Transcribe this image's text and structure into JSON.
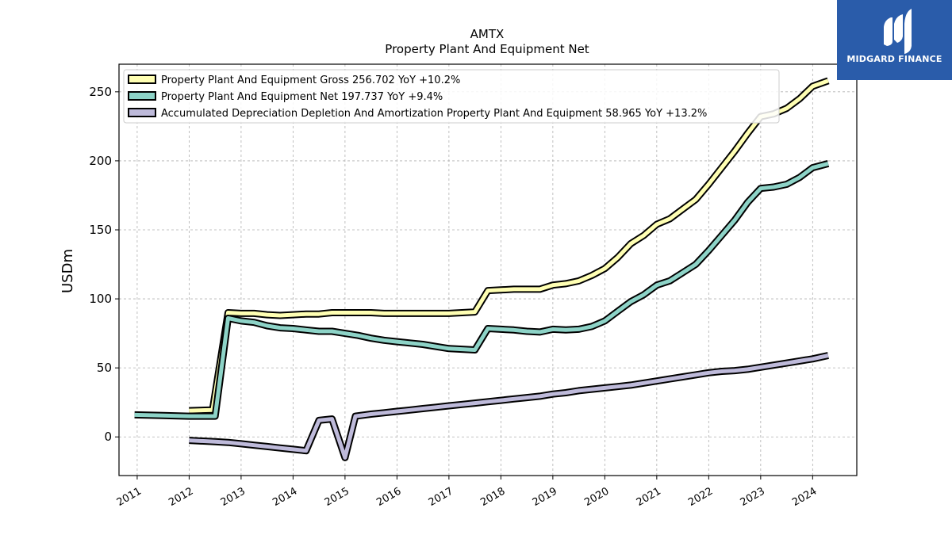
{
  "chart_data": {
    "type": "line",
    "title": "AMTX",
    "subtitle": "Property Plant And Equipment Net",
    "ylabel": "USDm",
    "xlabel": "",
    "xlim": [
      2010.65,
      2024.85
    ],
    "ylim": [
      -28,
      270
    ],
    "y_ticks": [
      0,
      50,
      100,
      150,
      200,
      250
    ],
    "x_ticks": [
      2011,
      2012,
      2013,
      2014,
      2015,
      2016,
      2017,
      2018,
      2019,
      2020,
      2021,
      2022,
      2023,
      2024
    ],
    "x_tick_labels": [
      "2011",
      "2012",
      "2013",
      "2014",
      "2015",
      "2016",
      "2017",
      "2018",
      "2019",
      "2020",
      "2021",
      "2022",
      "2023",
      "2024"
    ],
    "grid": true,
    "legend_position": "top-left",
    "series": [
      {
        "name": "Property Plant And Equipment Gross",
        "legend_label": "Property Plant And Equipment Gross  256.702 YoY +10.2%",
        "color": "#ffffb3",
        "points": [
          [
            2012.0,
            19
          ],
          [
            2012.45,
            19.5
          ],
          [
            2012.75,
            90
          ],
          [
            2013.0,
            89.5
          ],
          [
            2013.25,
            89.5
          ],
          [
            2013.5,
            88.5
          ],
          [
            2013.75,
            88
          ],
          [
            2014.0,
            88.5
          ],
          [
            2014.25,
            89
          ],
          [
            2014.5,
            89
          ],
          [
            2014.75,
            90
          ],
          [
            2015.0,
            90
          ],
          [
            2015.25,
            90
          ],
          [
            2015.5,
            90
          ],
          [
            2015.75,
            89.5
          ],
          [
            2016.0,
            89.5
          ],
          [
            2016.25,
            89.5
          ],
          [
            2016.5,
            89.5
          ],
          [
            2016.75,
            89.5
          ],
          [
            2017.0,
            89.5
          ],
          [
            2017.25,
            90
          ],
          [
            2017.5,
            90.5
          ],
          [
            2017.75,
            106
          ],
          [
            2018.0,
            106.5
          ],
          [
            2018.25,
            107
          ],
          [
            2018.5,
            107
          ],
          [
            2018.75,
            107
          ],
          [
            2019.0,
            110
          ],
          [
            2019.25,
            111
          ],
          [
            2019.5,
            113
          ],
          [
            2019.75,
            117
          ],
          [
            2020.0,
            122
          ],
          [
            2020.25,
            130
          ],
          [
            2020.5,
            140
          ],
          [
            2020.75,
            146
          ],
          [
            2021.0,
            154
          ],
          [
            2021.25,
            158
          ],
          [
            2021.5,
            165
          ],
          [
            2021.75,
            172
          ],
          [
            2022.0,
            183
          ],
          [
            2022.25,
            195
          ],
          [
            2022.5,
            207
          ],
          [
            2022.75,
            220
          ],
          [
            2023.0,
            232
          ],
          [
            2023.25,
            234
          ],
          [
            2023.5,
            238
          ],
          [
            2023.75,
            245
          ],
          [
            2024.0,
            254
          ],
          [
            2024.3,
            258
          ]
        ]
      },
      {
        "name": "Property Plant And Equipment Net",
        "legend_label": "Property Plant And Equipment Net  197.737 YoY +9.4%",
        "color": "#8dd3c7",
        "points": [
          [
            2010.95,
            16
          ],
          [
            2011.5,
            15.5
          ],
          [
            2012.0,
            15
          ],
          [
            2012.5,
            15
          ],
          [
            2012.75,
            86
          ],
          [
            2013.0,
            84
          ],
          [
            2013.25,
            83
          ],
          [
            2013.5,
            80.5
          ],
          [
            2013.75,
            79
          ],
          [
            2014.0,
            78.5
          ],
          [
            2014.25,
            77.5
          ],
          [
            2014.5,
            76.5
          ],
          [
            2014.75,
            76.5
          ],
          [
            2015.0,
            75
          ],
          [
            2015.25,
            73.5
          ],
          [
            2015.5,
            71.5
          ],
          [
            2015.75,
            70
          ],
          [
            2016.0,
            69
          ],
          [
            2016.25,
            68
          ],
          [
            2016.5,
            67
          ],
          [
            2016.75,
            65.5
          ],
          [
            2017.0,
            64
          ],
          [
            2017.25,
            63.5
          ],
          [
            2017.5,
            63
          ],
          [
            2017.75,
            78.5
          ],
          [
            2018.0,
            78
          ],
          [
            2018.25,
            77.5
          ],
          [
            2018.5,
            76.5
          ],
          [
            2018.75,
            76
          ],
          [
            2019.0,
            78
          ],
          [
            2019.25,
            77.5
          ],
          [
            2019.5,
            78
          ],
          [
            2019.75,
            80
          ],
          [
            2020.0,
            84
          ],
          [
            2020.25,
            91
          ],
          [
            2020.5,
            98
          ],
          [
            2020.75,
            103
          ],
          [
            2021.0,
            110
          ],
          [
            2021.25,
            113
          ],
          [
            2021.5,
            119
          ],
          [
            2021.75,
            125
          ],
          [
            2022.0,
            135
          ],
          [
            2022.25,
            146
          ],
          [
            2022.5,
            157
          ],
          [
            2022.75,
            170
          ],
          [
            2023.0,
            180
          ],
          [
            2023.25,
            181
          ],
          [
            2023.5,
            183
          ],
          [
            2023.75,
            188
          ],
          [
            2024.0,
            195
          ],
          [
            2024.3,
            198
          ]
        ]
      },
      {
        "name": "Accumulated Depreciation Depletion And Amortization Property Plant And Equipment",
        "legend_label": "Accumulated Depreciation Depletion And Amortization Property Plant And Equipment  58.965 YoY +13.2%",
        "color": "#bebada",
        "points": [
          [
            2012.0,
            -2.5
          ],
          [
            2012.5,
            -3.5
          ],
          [
            2012.75,
            -4
          ],
          [
            2013.0,
            -5
          ],
          [
            2013.25,
            -6
          ],
          [
            2013.5,
            -7
          ],
          [
            2013.75,
            -8
          ],
          [
            2014.0,
            -9
          ],
          [
            2014.25,
            -10
          ],
          [
            2014.5,
            12
          ],
          [
            2014.75,
            13
          ],
          [
            2015.0,
            -15
          ],
          [
            2015.2,
            15
          ],
          [
            2015.5,
            16.5
          ],
          [
            2015.75,
            17.5
          ],
          [
            2016.0,
            18.5
          ],
          [
            2016.25,
            19.5
          ],
          [
            2016.5,
            20.5
          ],
          [
            2016.75,
            21.5
          ],
          [
            2017.0,
            22.5
          ],
          [
            2017.25,
            23.5
          ],
          [
            2017.5,
            24.5
          ],
          [
            2017.75,
            25.5
          ],
          [
            2018.0,
            26.5
          ],
          [
            2018.25,
            27.5
          ],
          [
            2018.5,
            28.5
          ],
          [
            2018.75,
            29.5
          ],
          [
            2019.0,
            31
          ],
          [
            2019.25,
            32
          ],
          [
            2019.5,
            33.5
          ],
          [
            2019.75,
            34.5
          ],
          [
            2020.0,
            35.5
          ],
          [
            2020.25,
            36.5
          ],
          [
            2020.5,
            37.5
          ],
          [
            2020.75,
            39
          ],
          [
            2021.0,
            40.5
          ],
          [
            2021.25,
            42
          ],
          [
            2021.5,
            43.5
          ],
          [
            2021.75,
            45
          ],
          [
            2022.0,
            46.5
          ],
          [
            2022.25,
            47.5
          ],
          [
            2022.5,
            48
          ],
          [
            2022.75,
            49
          ],
          [
            2023.0,
            50.5
          ],
          [
            2023.25,
            52
          ],
          [
            2023.5,
            53.5
          ],
          [
            2023.75,
            55
          ],
          [
            2024.0,
            56.5
          ],
          [
            2024.3,
            59
          ]
        ]
      }
    ]
  },
  "brand": {
    "name": "MIDGARD FINANCE",
    "background": "#2a5caa"
  }
}
